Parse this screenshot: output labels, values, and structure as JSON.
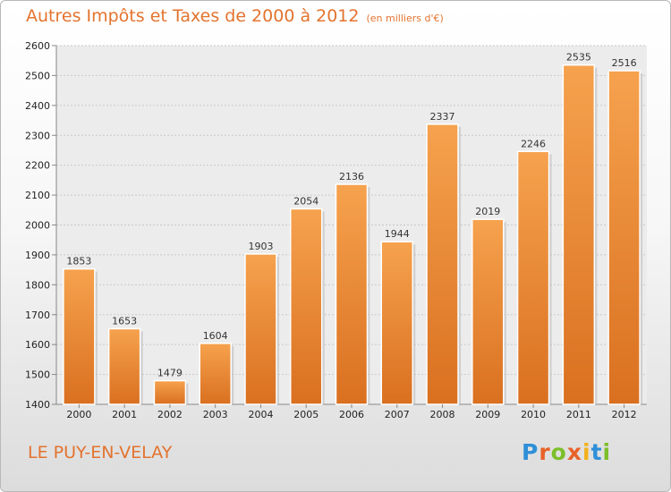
{
  "chart_data": {
    "type": "bar",
    "title": "Autres Impôts et Taxes de 2000 à 2012",
    "subtitle": "(en milliers d'€)",
    "categories": [
      "2000",
      "2001",
      "2002",
      "2003",
      "2004",
      "2005",
      "2006",
      "2007",
      "2008",
      "2009",
      "2010",
      "2011",
      "2012"
    ],
    "values": [
      1853,
      1653,
      1479,
      1604,
      1903,
      2054,
      2136,
      1944,
      2337,
      2019,
      2246,
      2535,
      2516
    ],
    "ylim": [
      1400,
      2600
    ],
    "yticks": [
      1400,
      1500,
      1600,
      1700,
      1800,
      1900,
      2000,
      2100,
      2200,
      2300,
      2400,
      2500,
      2600
    ],
    "grid": true,
    "bar_color_top": "#f6a24e",
    "bar_color_bottom": "#d97020",
    "data_labels": true
  },
  "footer": {
    "location": "LE PUY-EN-VELAY",
    "logo": [
      "P",
      "r",
      "o",
      "x",
      "i",
      "t",
      "i"
    ],
    "logo_colors": [
      "#2f8fd8",
      "#e8622a",
      "#7cbf2a",
      "#e8622a",
      "#f2b21b",
      "#2f8fd8",
      "#7cbf2a"
    ]
  }
}
